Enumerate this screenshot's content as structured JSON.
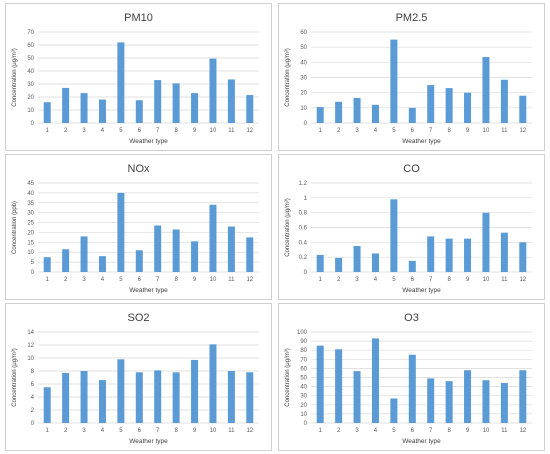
{
  "chart_data": [
    {
      "type": "bar",
      "title": "PM10",
      "xlabel": "Weather type",
      "ylabel": "Concentration (μg/m³)",
      "categories": [
        "1",
        "2",
        "3",
        "4",
        "5",
        "6",
        "7",
        "8",
        "9",
        "10",
        "11",
        "12"
      ],
      "values": [
        16,
        27,
        23,
        18,
        62,
        17.5,
        33,
        30.5,
        23,
        49.5,
        33.5,
        21.5
      ],
      "ylim": [
        0,
        70
      ],
      "ytick_step": 10,
      "color": "#5b9bd5",
      "grid": true
    },
    {
      "type": "bar",
      "title": "PM2.5",
      "xlabel": "Weather type",
      "ylabel": "Concentration (μg/m³)",
      "categories": [
        "1",
        "2",
        "3",
        "4",
        "5",
        "6",
        "7",
        "8",
        "9",
        "10",
        "11",
        "12"
      ],
      "values": [
        10.5,
        14,
        16.5,
        12,
        55,
        10,
        25,
        23,
        20,
        43.5,
        28.5,
        18
      ],
      "ylim": [
        0,
        60
      ],
      "ytick_step": 10,
      "color": "#5b9bd5",
      "grid": true
    },
    {
      "type": "bar",
      "title": "NOx",
      "xlabel": "Weather type",
      "ylabel": "Concentration (ppb)",
      "categories": [
        "1",
        "2",
        "3",
        "4",
        "5",
        "6",
        "7",
        "8",
        "9",
        "10",
        "11",
        "12"
      ],
      "values": [
        7.5,
        11.5,
        18,
        8,
        40,
        11,
        23.5,
        21.5,
        15.5,
        34,
        23,
        17.5
      ],
      "ylim": [
        0,
        45
      ],
      "ytick_step": 5,
      "color": "#5b9bd5",
      "grid": true
    },
    {
      "type": "bar",
      "title": "CO",
      "xlabel": "Weather type",
      "ylabel": "Concentration (μg/m³)",
      "categories": [
        "1",
        "2",
        "3",
        "4",
        "5",
        "6",
        "7",
        "8",
        "9",
        "10",
        "11",
        "12"
      ],
      "values": [
        0.23,
        0.19,
        0.35,
        0.25,
        0.98,
        0.15,
        0.48,
        0.45,
        0.45,
        0.8,
        0.53,
        0.4
      ],
      "ylim": [
        0,
        1.2
      ],
      "ytick_step": 0.2,
      "color": "#5b9bd5",
      "grid": true
    },
    {
      "type": "bar",
      "title": "SO2",
      "xlabel": "Weather type",
      "ylabel": "Concentration (μg/m³)",
      "categories": [
        "1",
        "2",
        "3",
        "4",
        "5",
        "6",
        "7",
        "8",
        "9",
        "10",
        "11",
        "12"
      ],
      "values": [
        5.5,
        7.7,
        8,
        6.6,
        9.8,
        7.8,
        8.1,
        7.8,
        9.7,
        12.1,
        8,
        7.8
      ],
      "ylim": [
        0,
        14
      ],
      "ytick_step": 2,
      "color": "#5b9bd5",
      "grid": true
    },
    {
      "type": "bar",
      "title": "O3",
      "xlabel": "Weather type",
      "ylabel": "Concentration (μg/m³)",
      "categories": [
        "1",
        "2",
        "3",
        "4",
        "5",
        "6",
        "7",
        "8",
        "9",
        "10",
        "11",
        "12"
      ],
      "values": [
        85,
        81,
        57,
        93,
        27,
        75,
        49,
        46,
        58,
        47,
        44,
        58
      ],
      "ylim": [
        0,
        100
      ],
      "ytick_step": 10,
      "color": "#5b9bd5",
      "grid": true
    }
  ]
}
